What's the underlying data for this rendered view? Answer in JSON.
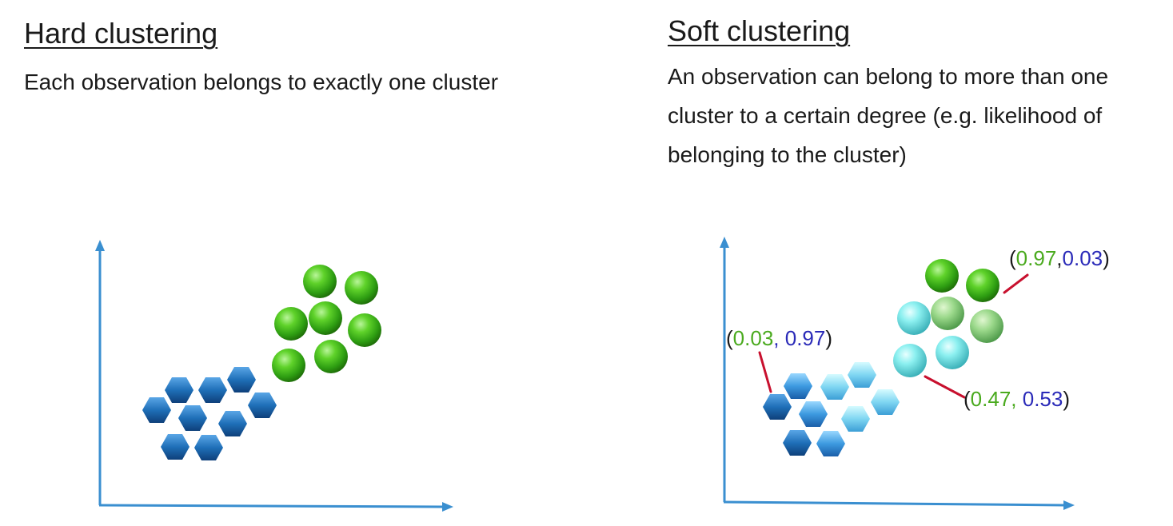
{
  "hard": {
    "title": "Hard clustering",
    "description": "Each observation belongs to exactly one cluster"
  },
  "soft": {
    "title": "Soft clustering",
    "description": "An observation can belong to more than one cluster to a certain degree (e.g. likelihood of belonging to the cluster)",
    "labels": [
      {
        "open": "(",
        "green": "0.97",
        "sep": ",",
        "blue": "0.03",
        "close": ")"
      },
      {
        "open": "(",
        "green": "0.03",
        "sep": ", ",
        "blue": "0.97",
        "close": ")"
      },
      {
        "open": "(",
        "green": "0.47",
        "sep": ", ",
        "blue": "0.53",
        "close": ")"
      }
    ]
  },
  "colors": {
    "axis": "#3a8fd0",
    "green_cluster": "#3fb319",
    "blue_cluster": "#1f6fb8",
    "mixed_cyan": "#6fe3e8",
    "leader_line": "#c8102e",
    "label_green": "#4aaa1e",
    "label_blue": "#2a2ab8"
  }
}
